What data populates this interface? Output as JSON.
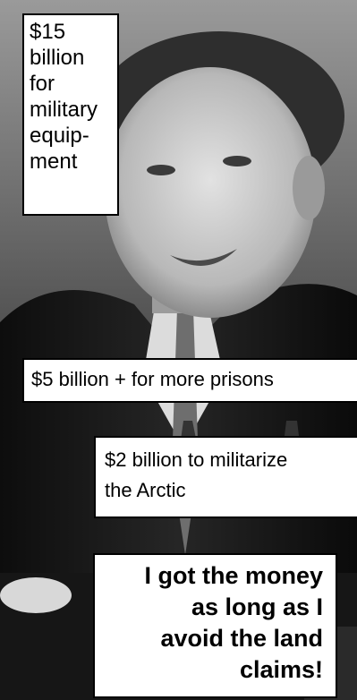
{
  "captions": {
    "military": [
      "$15",
      "billion",
      "for",
      "military",
      "equip-",
      "ment"
    ],
    "prisons": "$5 billion  + for more prisons",
    "arctic": [
      "$2 billion to militarize",
      "the Arctic"
    ],
    "land_claims": [
      "I got the money",
      "as long as I",
      "avoid the land",
      "claims!"
    ]
  }
}
